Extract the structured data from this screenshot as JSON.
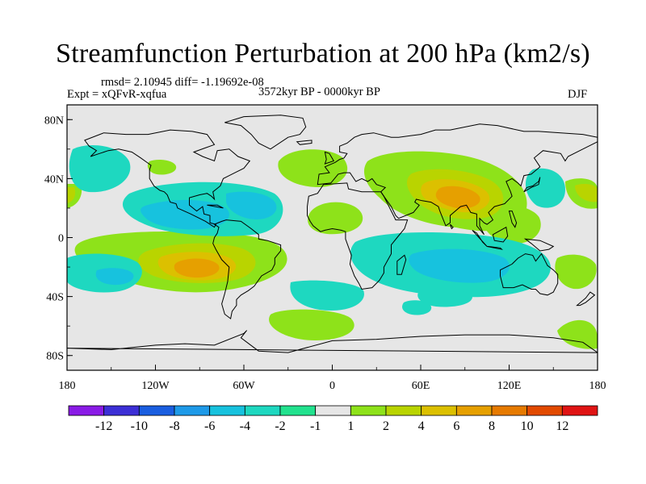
{
  "title": "Streamfunction Perturbation at 200 hPa (km2/s)",
  "stats": "rmsd= 2.10945 diff= -1.19692e-08",
  "experiment": "Expt = xQFvR-xqfua",
  "period": "3572kyr BP - 0000kyr BP",
  "season": "DJF",
  "lat_ticks": [
    "80N",
    "40N",
    "0",
    "40S",
    "80S"
  ],
  "lon_ticks": [
    "180",
    "120W",
    "60W",
    "0",
    "60E",
    "120E",
    "180"
  ],
  "colorbar": {
    "labels": [
      "-12",
      "-10",
      "-8",
      "-6",
      "-4",
      "-2",
      "-1",
      "1",
      "2",
      "4",
      "6",
      "8",
      "10",
      "12"
    ],
    "colors": [
      "#8a1be6",
      "#3c2fd6",
      "#1a5ee0",
      "#1e9ae8",
      "#17c2de",
      "#1ed8c0",
      "#22e28e",
      "#e6e6e6",
      "#8ee21a",
      "#b9d400",
      "#dcc000",
      "#e6a000",
      "#e67a00",
      "#e24a00",
      "#e01414"
    ]
  },
  "chart_data": {
    "type": "contour-map",
    "variable": "streamfunction perturbation",
    "level": "200 hPa",
    "units": "km2/s",
    "projection": "cylindrical equidistant",
    "lon_range": [
      -180,
      180
    ],
    "lat_range": [
      -90,
      90
    ],
    "features": [
      {
        "name": "tibet-high",
        "lon": 82,
        "lat": 22,
        "peak": 8
      },
      {
        "name": "arabian-ridge",
        "lon": 38,
        "lat": 28,
        "peak": 3
      },
      {
        "name": "north-atlantic-ridge",
        "lon": -35,
        "lat": 40,
        "peak": 2
      },
      {
        "name": "africa-ridge",
        "lon": 10,
        "lat": 5,
        "peak": 2
      },
      {
        "name": "west-pacific-ridge",
        "lon": 112,
        "lat": 5,
        "peak": 2
      },
      {
        "name": "indian-ocean-trough",
        "lon": 75,
        "lat": -15,
        "peak": -4
      },
      {
        "name": "north-pacific-trough",
        "lon": -115,
        "lat": 15,
        "peak": -4
      },
      {
        "name": "atlantic-trough",
        "lon": -55,
        "lat": 15,
        "peak": -4
      },
      {
        "name": "south-america-high",
        "lon": -75,
        "lat": -25,
        "peak": 9
      },
      {
        "name": "south-pacific-trough",
        "lon": -160,
        "lat": -20,
        "peak": -3
      }
    ]
  }
}
